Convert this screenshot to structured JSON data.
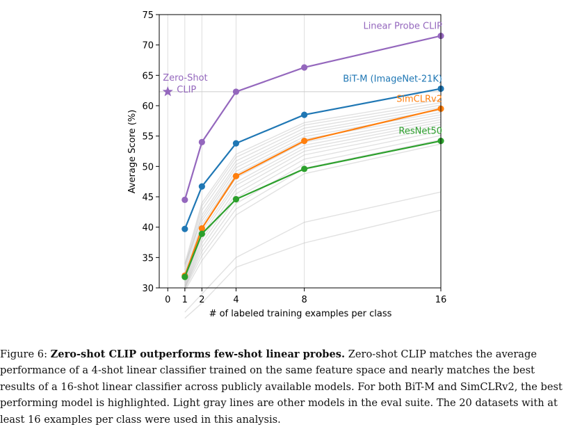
{
  "chart_data": {
    "type": "line",
    "xlabel": "# of labeled training examples per class",
    "ylabel": "Average Score (%)",
    "xticks": [
      0,
      1,
      2,
      4,
      8,
      16
    ],
    "xtick_labels": [
      "0",
      "1",
      "2",
      "4",
      "8",
      "16"
    ],
    "yticks": [
      30,
      35,
      40,
      45,
      50,
      55,
      60,
      65,
      70,
      75
    ],
    "xlim": [
      -0.5,
      16
    ],
    "ylim": [
      30,
      75
    ],
    "x_scale": "linear",
    "grid": "vertical lines at x ticks",
    "series": [
      {
        "name": "Linear Probe CLIP",
        "color": "#9467bd",
        "x": [
          1,
          2,
          4,
          8,
          16
        ],
        "values": [
          44.5,
          54.0,
          62.3,
          66.3,
          71.5
        ]
      },
      {
        "name": "BiT-M (ImageNet-21K)",
        "color": "#1f77b4",
        "x": [
          1,
          2,
          4,
          8,
          16
        ],
        "values": [
          39.7,
          46.7,
          53.8,
          58.5,
          62.8
        ]
      },
      {
        "name": "SimCLRv2",
        "color": "#ff7f0e",
        "x": [
          1,
          2,
          4,
          8,
          16
        ],
        "values": [
          32.0,
          39.8,
          48.4,
          54.2,
          59.5
        ]
      },
      {
        "name": "ResNet50",
        "color": "#2ca02c",
        "x": [
          1,
          2,
          4,
          8,
          16
        ],
        "values": [
          31.8,
          38.9,
          44.6,
          49.6,
          54.2
        ]
      }
    ],
    "gray_series": [
      {
        "x": [
          1,
          2,
          4,
          8,
          16
        ],
        "values": [
          34.0,
          44.0,
          52.0,
          57.2,
          61.0
        ]
      },
      {
        "x": [
          1,
          2,
          4,
          8,
          16
        ],
        "values": [
          33.5,
          43.5,
          51.5,
          56.8,
          60.5
        ]
      },
      {
        "x": [
          1,
          2,
          4,
          8,
          16
        ],
        "values": [
          33.0,
          42.8,
          50.9,
          56.3,
          60.1
        ]
      },
      {
        "x": [
          1,
          2,
          4,
          8,
          16
        ],
        "values": [
          32.5,
          42.0,
          50.3,
          55.8,
          59.7
        ]
      },
      {
        "x": [
          1,
          2,
          4,
          8,
          16
        ],
        "values": [
          33.8,
          41.5,
          49.8,
          55.4,
          59.3
        ]
      },
      {
        "x": [
          1,
          2,
          4,
          8,
          16
        ],
        "values": [
          32.0,
          41.0,
          49.2,
          54.9,
          58.9
        ]
      },
      {
        "x": [
          1,
          2,
          4,
          8,
          16
        ],
        "values": [
          31.5,
          40.4,
          48.7,
          54.5,
          58.5
        ]
      },
      {
        "x": [
          1,
          2,
          4,
          8,
          16
        ],
        "values": [
          31.0,
          39.9,
          48.1,
          54.0,
          58.1
        ]
      },
      {
        "x": [
          1,
          2,
          4,
          8,
          16
        ],
        "values": [
          30.8,
          39.3,
          47.4,
          53.5,
          57.7
        ]
      },
      {
        "x": [
          1,
          2,
          4,
          8,
          16
        ],
        "values": [
          30.5,
          38.7,
          46.9,
          53.0,
          57.3
        ]
      },
      {
        "x": [
          1,
          2,
          4,
          8,
          16
        ],
        "values": [
          30.3,
          38.0,
          46.2,
          52.5,
          56.9
        ]
      },
      {
        "x": [
          1,
          2,
          4,
          8,
          16
        ],
        "values": [
          30.1,
          37.4,
          45.5,
          51.9,
          56.4
        ]
      },
      {
        "x": [
          1,
          2,
          4,
          8,
          16
        ],
        "values": [
          30.0,
          36.7,
          44.8,
          51.2,
          55.8
        ]
      },
      {
        "x": [
          1,
          2,
          4,
          8,
          16
        ],
        "values": [
          30.0,
          36.0,
          43.9,
          50.4,
          55.1
        ]
      },
      {
        "x": [
          1,
          2,
          4,
          8,
          16
        ],
        "values": [
          29.8,
          35.3,
          43.0,
          49.7,
          54.4
        ]
      },
      {
        "x": [
          1,
          2,
          4,
          8,
          16
        ],
        "values": [
          29.5,
          34.5,
          42.0,
          48.8,
          53.7
        ]
      },
      {
        "x": [
          1,
          2,
          4,
          8,
          16
        ],
        "values": [
          26.0,
          29.0,
          35.0,
          40.8,
          45.8
        ]
      },
      {
        "x": [
          1,
          2,
          4,
          8,
          16
        ],
        "values": [
          25.0,
          27.5,
          33.4,
          37.4,
          42.8
        ]
      }
    ],
    "zero_shot": {
      "label_line1": "Zero-Shot",
      "label_line2": "CLIP",
      "color": "#9467bd",
      "marker": "star",
      "x": 0,
      "value": 62.3
    },
    "zero_shot_reference_line": {
      "value": 62.3,
      "color": "#cccccc"
    }
  },
  "caption": {
    "lines": [
      {
        "prefix": "Figure 6: ",
        "bold": "Zero-shot CLIP outperforms few-shot linear probes.",
        "text": " Zero-shot CLIP matches the average"
      },
      {
        "text": "performance of a 4-shot linear classifier trained on the same feature space and nearly matches the best"
      },
      {
        "text": "results of a 16-shot linear classifier across publicly available models. For both BiT-M and SimCLRv2, the best"
      },
      {
        "text": "performing model is highlighted. Light gray lines are other models in the eval suite. The 20 datasets with at"
      },
      {
        "text": "least 16 examples per class were used in this analysis."
      }
    ]
  }
}
